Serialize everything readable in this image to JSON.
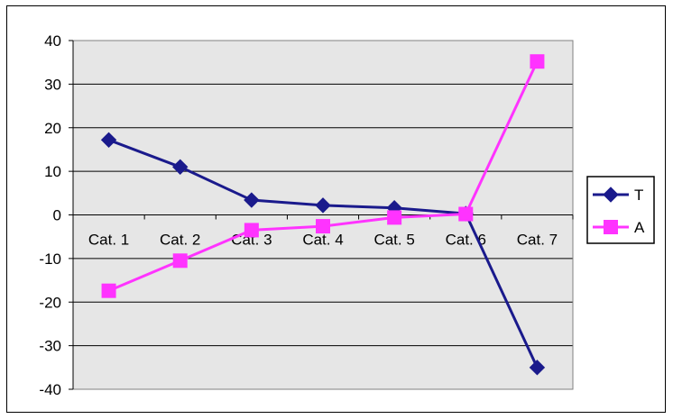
{
  "chart_data": {
    "type": "line",
    "categories": [
      "Cat. 1",
      "Cat. 2",
      "Cat. 3",
      "Cat. 4",
      "Cat. 5",
      "Cat. 6",
      "Cat. 7"
    ],
    "series": [
      {
        "name": "T",
        "values": [
          17.2,
          11.0,
          3.4,
          2.2,
          1.6,
          0.3,
          -35.0
        ],
        "color": "#1a1a8c",
        "marker": "diamond"
      },
      {
        "name": "A",
        "values": [
          -17.4,
          -10.5,
          -3.5,
          -2.6,
          -0.6,
          0.2,
          35.2
        ],
        "color": "#ff33ff",
        "marker": "square"
      }
    ],
    "ylim": [
      -40,
      40
    ],
    "yticks": [
      40,
      30,
      20,
      10,
      0,
      -10,
      -20,
      -30,
      -40
    ],
    "title": "",
    "xlabel": "",
    "ylabel": "",
    "grid": true,
    "legend_position": "right",
    "plot_background": "#e6e6e6"
  }
}
